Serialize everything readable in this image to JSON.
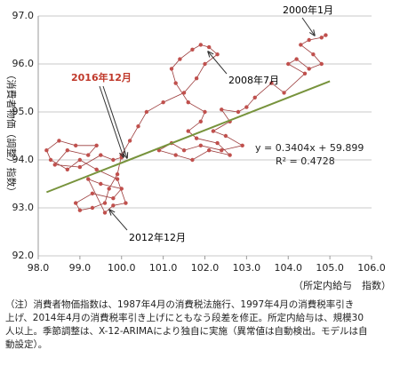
{
  "chart_data": {
    "type": "scatter",
    "y_axis_label": "（消費者物価（調整）指数）",
    "x_axis_label": "（所定内給与　指数）",
    "xlim": [
      98.0,
      106.0
    ],
    "ylim": [
      92.0,
      97.0
    ],
    "xticks": [
      {
        "value": 98,
        "label": "98.0"
      },
      {
        "value": 99,
        "label": "99.0"
      },
      {
        "value": 100,
        "label": "100.0"
      },
      {
        "value": 101,
        "label": "101.0"
      },
      {
        "value": 102,
        "label": "102.0"
      },
      {
        "value": 103,
        "label": "103.0"
      },
      {
        "value": 104,
        "label": "104.0"
      },
      {
        "value": 105,
        "label": "105.0"
      },
      {
        "value": 106,
        "label": "106.0"
      }
    ],
    "yticks": [
      {
        "value": 92,
        "label": "92.0"
      },
      {
        "value": 93,
        "label": "93.0"
      },
      {
        "value": 94,
        "label": "94.0"
      },
      {
        "value": 95,
        "label": "95.0"
      },
      {
        "value": 96,
        "label": "96.0"
      },
      {
        "value": 97,
        "label": "97.0"
      }
    ],
    "grid": true,
    "series": [
      {
        "color": "#c0504d",
        "line_color": "#9b3b3b",
        "x": [
          104.9,
          104.8,
          104.5,
          104.3,
          104.6,
          104.8,
          104.5,
          104.2,
          104.0,
          104.4,
          103.9,
          103.6,
          103.2,
          103.0,
          102.8,
          102.4,
          102.6,
          102.2,
          102.5,
          102.9,
          102.4,
          101.9,
          101.5,
          101.2,
          100.9,
          101.3,
          101.7,
          102.1,
          102.6,
          102.3,
          101.8,
          101.6,
          101.9,
          102.0,
          101.6,
          101.3,
          101.2,
          101.4,
          101.7,
          101.9,
          102.1,
          102.3,
          102.0,
          101.8,
          101.5,
          101.0,
          100.6,
          100.4,
          100.2,
          100.0,
          99.9,
          99.7,
          99.6,
          99.3,
          99.0,
          98.9,
          99.3,
          99.8,
          100.0,
          99.5,
          99.2,
          99.6,
          99.8,
          100.1,
          99.9,
          99.4,
          99.0,
          98.7,
          98.3,
          98.2,
          98.5,
          98.9,
          99.4,
          99.2,
          98.7,
          98.4,
          99.0,
          99.5,
          99.8,
          100.0
        ],
        "y": [
          96.6,
          96.55,
          96.5,
          96.4,
          96.2,
          96.0,
          95.9,
          96.1,
          96.0,
          95.8,
          95.4,
          95.6,
          95.3,
          95.1,
          95.0,
          95.05,
          94.8,
          94.6,
          94.5,
          94.3,
          94.2,
          94.3,
          94.2,
          94.35,
          94.2,
          94.1,
          94.0,
          94.2,
          94.1,
          94.35,
          94.45,
          94.6,
          94.8,
          95.0,
          95.2,
          95.6,
          95.9,
          96.1,
          96.3,
          96.4,
          96.35,
          96.2,
          96.0,
          95.7,
          95.4,
          95.2,
          95.0,
          94.7,
          94.4,
          94.1,
          93.7,
          93.4,
          93.1,
          93.0,
          92.95,
          93.1,
          93.3,
          93.2,
          93.4,
          93.5,
          93.6,
          92.9,
          93.05,
          93.1,
          93.6,
          93.8,
          94.0,
          93.8,
          94.0,
          94.2,
          94.4,
          94.3,
          94.3,
          94.1,
          94.2,
          93.9,
          93.85,
          94.1,
          94.0,
          94.05
        ]
      }
    ],
    "trendline": {
      "slope": 0.3404,
      "intercept": 59.899,
      "x": [
        98.2,
        105.0
      ],
      "color": "#77933c",
      "equation": "y = 0.3404x + 59.899",
      "r_squared": "R² = 0.4728"
    },
    "annotations": [
      {
        "text": "2000年1月",
        "color": "#000000"
      },
      {
        "text": "2008年7月",
        "color": "#000000"
      },
      {
        "text": "2016年12月",
        "color": "#c0392b"
      },
      {
        "text": "2012年12月",
        "color": "#000000"
      }
    ]
  },
  "note": {
    "lines": [
      "（注）消費者物価指数は、1987年4月の消費税法施行、1997年4月の消費税率引き",
      "上げ、2014年4月の消費税率引き上げにともなう段差を修正。所定内給与は、規模30",
      "人以上。季節調整は、X-12-ARIMAにより独自に実施（異常値は自動検出。モデルは自",
      "動設定）。"
    ]
  }
}
